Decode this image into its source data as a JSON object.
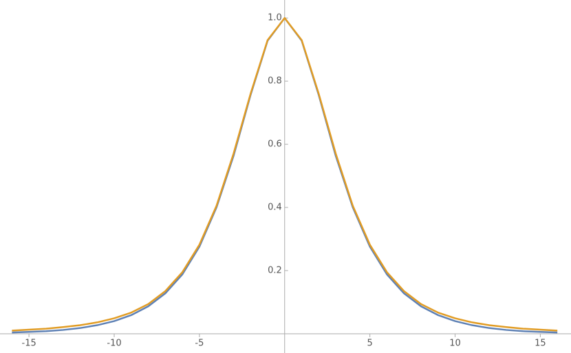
{
  "chart_data": {
    "type": "line",
    "x": [
      -16,
      -15,
      -14,
      -13,
      -12,
      -11,
      -10,
      -9,
      -8,
      -7,
      -6,
      -5,
      -4,
      -3,
      -2,
      -1,
      0,
      1,
      2,
      3,
      4,
      5,
      6,
      7,
      8,
      9,
      10,
      11,
      12,
      13,
      14,
      15,
      16
    ],
    "series": [
      {
        "color": "#5e81b5",
        "values": [
          0.004,
          0.006,
          0.008,
          0.012,
          0.018,
          0.027,
          0.04,
          0.059,
          0.087,
          0.128,
          0.188,
          0.276,
          0.4,
          0.563,
          0.756,
          0.928,
          1,
          0.928,
          0.756,
          0.563,
          0.4,
          0.276,
          0.188,
          0.128,
          0.087,
          0.059,
          0.04,
          0.027,
          0.018,
          0.012,
          0.008,
          0.006,
          0.004
        ]
      },
      {
        "color": "#e19c24",
        "values": [
          0.01,
          0.013,
          0.016,
          0.021,
          0.027,
          0.036,
          0.049,
          0.067,
          0.094,
          0.135,
          0.195,
          0.282,
          0.405,
          0.57,
          0.76,
          0.93,
          1,
          0.93,
          0.76,
          0.57,
          0.405,
          0.282,
          0.195,
          0.135,
          0.094,
          0.067,
          0.049,
          0.036,
          0.027,
          0.021,
          0.016,
          0.013,
          0.01
        ]
      }
    ],
    "xlim": [
      -16.7,
      16.8
    ],
    "ylim": [
      -0.061,
      1.057
    ],
    "xticks": [
      -15,
      -10,
      -5,
      5,
      10,
      15
    ],
    "yticks": [
      0.2,
      0.4,
      0.6,
      0.8,
      {
        "value": 1,
        "label": "1.0"
      }
    ]
  }
}
